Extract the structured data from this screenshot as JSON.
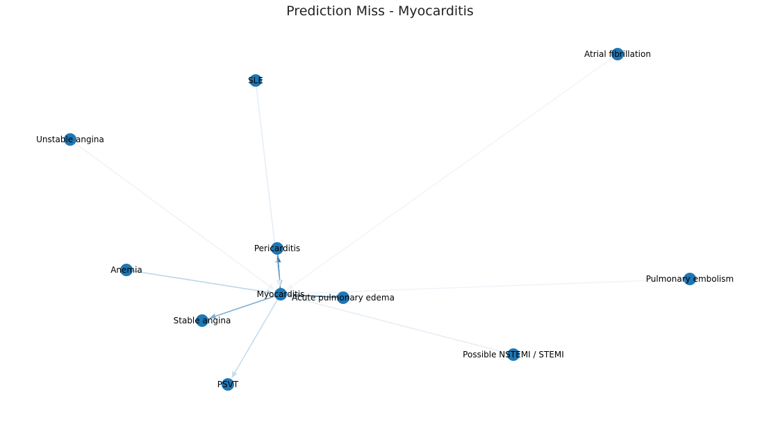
{
  "title": "Prediction Miss - Myocarditis",
  "node_color": "#1f77b4",
  "nodes": [
    {
      "id": "myocarditis",
      "label": "Myocarditis"
    },
    {
      "id": "pericarditis",
      "label": "Pericarditis"
    },
    {
      "id": "sle",
      "label": "SLE"
    },
    {
      "id": "atrial-fibrillation",
      "label": "Atrial fibrillation"
    },
    {
      "id": "unstable-angina",
      "label": "Unstable angina"
    },
    {
      "id": "anemia",
      "label": "Anemia"
    },
    {
      "id": "stable-angina",
      "label": "Stable angina"
    },
    {
      "id": "psvt",
      "label": "PSVT"
    },
    {
      "id": "acute-pulmonary-edema",
      "label": "Acute pulmonary edema"
    },
    {
      "id": "pulmonary-embolism",
      "label": "Pulmonary embolism"
    },
    {
      "id": "possible-nstemi-stemi",
      "label": "Possible NSTEMI / STEMI"
    }
  ],
  "edges": [
    {
      "from": "myocarditis",
      "to": "pericarditis",
      "color": "#2f6f9e"
    },
    {
      "from": "pericarditis",
      "to": "myocarditis",
      "color": "#4a8fc0"
    },
    {
      "from": "myocarditis",
      "to": "stable-angina",
      "color": "#7fb0d6"
    },
    {
      "from": "myocarditis",
      "to": "psvt",
      "color": "#c6dcee"
    },
    {
      "from": "anemia",
      "to": "myocarditis",
      "color": "#bcd6ea"
    },
    {
      "from": "acute-pulmonary-edema",
      "to": "myocarditis",
      "color": "#3d6f99"
    },
    {
      "from": "sle",
      "to": "myocarditis",
      "color": "#e4eef7"
    },
    {
      "from": "unstable-angina",
      "to": "myocarditis",
      "color": "#eef3f9"
    },
    {
      "from": "atrial-fibrillation",
      "to": "myocarditis",
      "color": "#f0f5fa"
    },
    {
      "from": "pulmonary-embolism",
      "to": "myocarditis",
      "color": "#eff4fa"
    },
    {
      "from": "possible-nstemi-stemi",
      "to": "myocarditis",
      "color": "#e6eff7"
    }
  ]
}
